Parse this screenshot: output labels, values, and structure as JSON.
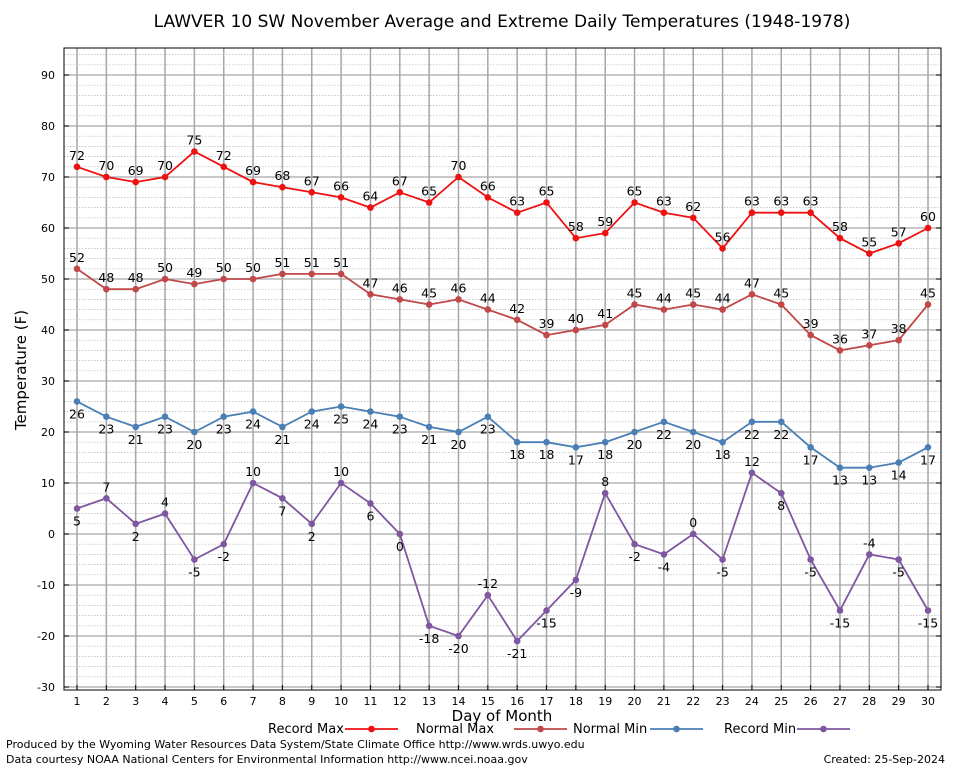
{
  "chart_data": {
    "type": "line",
    "title": "LAWVER 10 SW November Average and Extreme Daily Temperatures (1948-1978)",
    "xlabel": "Day of Month",
    "ylabel": "Temperature (F)",
    "xlim": [
      1,
      30
    ],
    "ylim": [
      -30,
      90
    ],
    "x": [
      1,
      2,
      3,
      4,
      5,
      6,
      7,
      8,
      9,
      10,
      11,
      12,
      13,
      14,
      15,
      16,
      17,
      18,
      19,
      20,
      21,
      22,
      23,
      24,
      25,
      26,
      27,
      28,
      29,
      30
    ],
    "x_ticks": [
      "1",
      "2",
      "3",
      "4",
      "5",
      "6",
      "7",
      "8",
      "9",
      "10",
      "11",
      "12",
      "13",
      "14",
      "15",
      "16",
      "17",
      "18",
      "19",
      "20",
      "21",
      "22",
      "23",
      "24",
      "25",
      "26",
      "27",
      "28",
      "29",
      "30"
    ],
    "y_ticks": [
      "90",
      "80",
      "70",
      "60",
      "50",
      "40",
      "30",
      "20",
      "10",
      "0",
      "-10",
      "-20",
      "-30"
    ],
    "y_tick_values": [
      90,
      80,
      70,
      60,
      50,
      40,
      30,
      20,
      10,
      0,
      -10,
      -20,
      -30
    ],
    "grid": true,
    "legend_position": "bottom",
    "series": [
      {
        "name": "Record Max",
        "color": "#ee1111",
        "label_pos": "above",
        "values": [
          72,
          70,
          69,
          70,
          75,
          72,
          69,
          68,
          67,
          66,
          64,
          67,
          65,
          70,
          66,
          63,
          65,
          58,
          59,
          65,
          63,
          62,
          56,
          63,
          63,
          63,
          58,
          55,
          57,
          60
        ]
      },
      {
        "name": "Normal Max",
        "color": "#c04848",
        "label_pos": "above",
        "values": [
          52,
          48,
          48,
          50,
          49,
          50,
          50,
          51,
          51,
          51,
          47,
          46,
          45,
          46,
          44,
          42,
          39,
          40,
          41,
          45,
          44,
          45,
          44,
          47,
          45,
          39,
          36,
          37,
          38,
          45
        ]
      },
      {
        "name": "Normal Min",
        "color": "#4a7fb5",
        "label_pos": "below",
        "values": [
          26,
          23,
          21,
          23,
          20,
          23,
          24,
          21,
          24,
          25,
          24,
          23,
          21,
          20,
          23,
          18,
          18,
          17,
          18,
          20,
          22,
          20,
          18,
          22,
          22,
          17,
          13,
          13,
          14,
          17
        ]
      },
      {
        "name": "Record Min",
        "color": "#7f56a0",
        "label_pos": "mixed",
        "values": [
          5,
          7,
          2,
          4,
          -5,
          -2,
          10,
          7,
          2,
          10,
          6,
          0,
          -18,
          -20,
          -12,
          -21,
          -15,
          -9,
          8,
          -2,
          -4,
          0,
          -5,
          12,
          8,
          -5,
          -15,
          -4,
          -5,
          -15
        ]
      }
    ]
  },
  "footer": {
    "left_line1": "Produced by the Wyoming Water Resources Data System/State Climate Office http://www.wrds.uwyo.edu",
    "left_line2": "Data courtesy NOAA National Centers for Environmental Information http://www.ncei.noaa.gov",
    "created": "Created:  25-Sep-2024"
  }
}
